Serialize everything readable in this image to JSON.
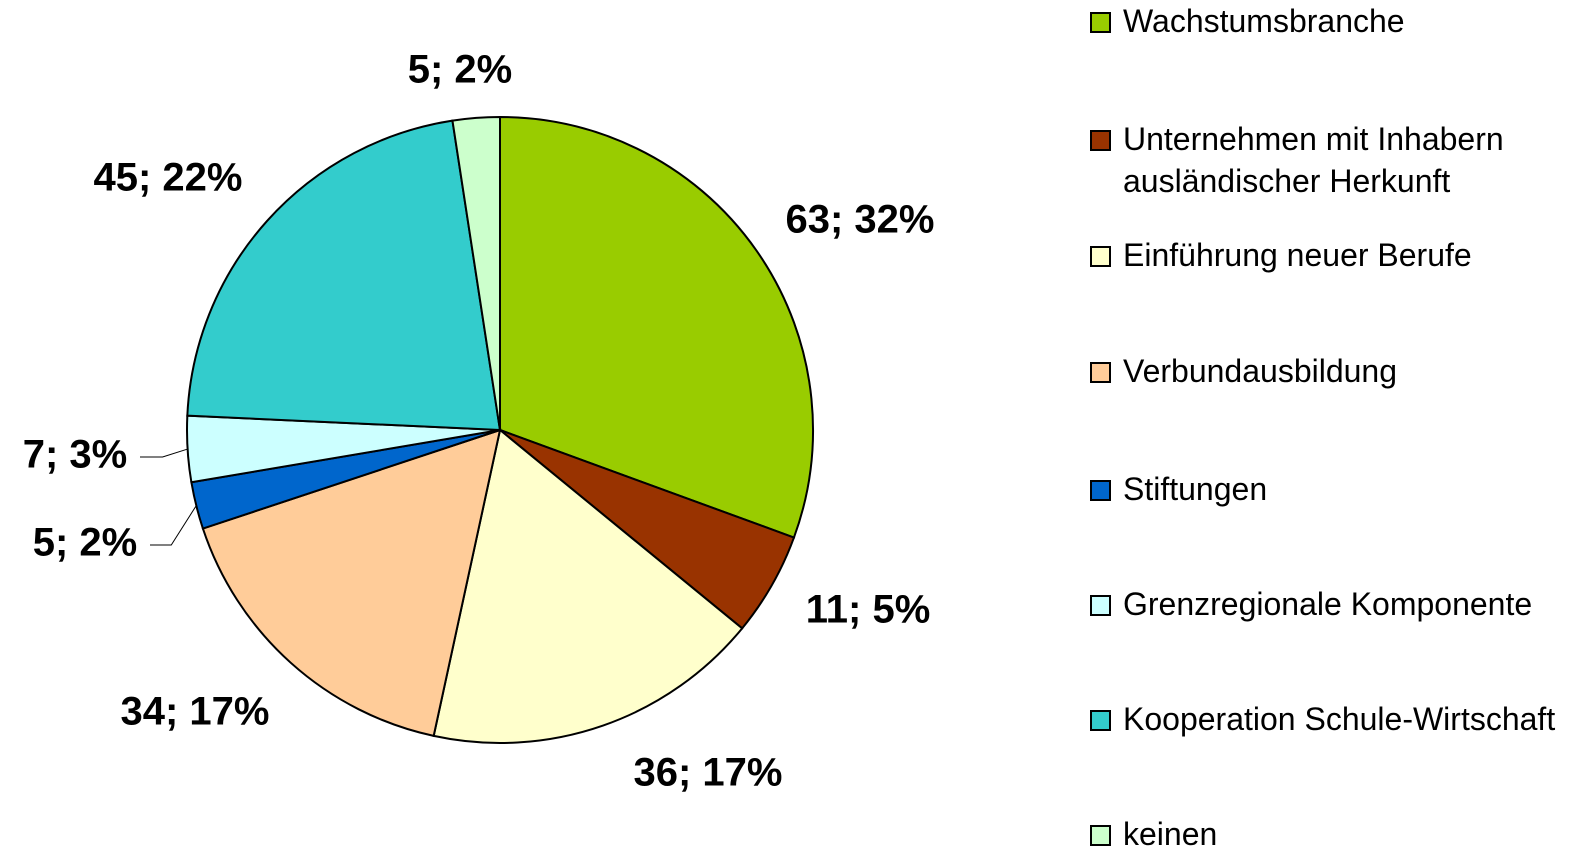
{
  "chart_data": {
    "type": "pie",
    "categories": [
      "Wachstumsbranche",
      "Unternehmen mit Inhabern ausländischer Herkunft",
      "Einführung neuer Berufe",
      "Verbundausbildung",
      "Stiftungen",
      "Grenzregionale Komponente",
      "Kooperation Schule-Wirtschaft",
      "keinen"
    ],
    "values": [
      63,
      11,
      36,
      34,
      5,
      7,
      45,
      5
    ],
    "value_labels": [
      "63; 32%",
      "11; 5%",
      "36; 17%",
      "34; 17%",
      "5; 2%",
      "7; 3%",
      "45; 22%",
      "5; 2%"
    ],
    "colors": [
      "#99cc00",
      "#993300",
      "#ffffcc",
      "#ffcc99",
      "#0066cc",
      "#ccffff",
      "#33cccc",
      "#ccffcc"
    ],
    "legend": "right"
  }
}
